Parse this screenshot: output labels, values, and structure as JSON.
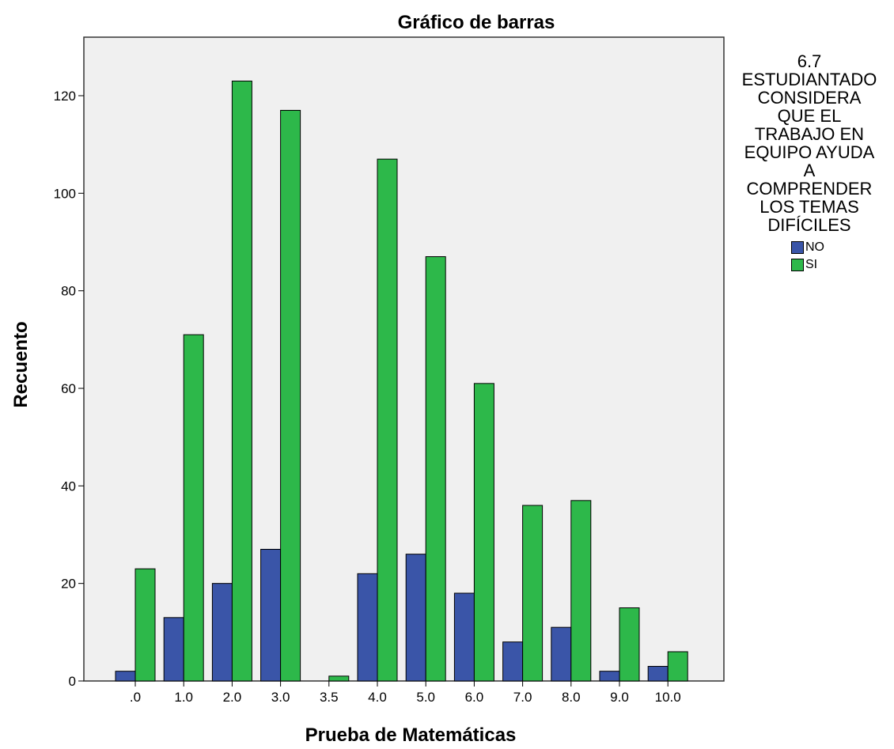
{
  "chart_data": {
    "type": "bar",
    "title": "Gráfico de barras",
    "xlabel": "Prueba de Matemáticas",
    "ylabel": "Recuento",
    "categories": [
      ".0",
      "1.0",
      "2.0",
      "3.0",
      "3.5",
      "4.0",
      "5.0",
      "6.0",
      "7.0",
      "8.0",
      "9.0",
      "10.0"
    ],
    "series": [
      {
        "name": "NO",
        "color": "#3a55a8",
        "values": [
          2,
          13,
          20,
          27,
          0,
          22,
          26,
          18,
          8,
          11,
          2,
          3
        ]
      },
      {
        "name": "SI",
        "color": "#2db84a",
        "values": [
          23,
          71,
          123,
          117,
          1,
          107,
          87,
          61,
          36,
          37,
          15,
          6
        ]
      }
    ],
    "ylim": [
      0,
      132
    ],
    "yticks": [
      0,
      20,
      40,
      60,
      80,
      100,
      120
    ],
    "ytick_labels": [
      "0",
      "20",
      "40",
      "60",
      "80",
      "100",
      "120"
    ],
    "legend": {
      "title_lines": [
        "6.7",
        "ESTUDIANTADO",
        "CONSIDERA",
        "QUE EL",
        "TRABAJO EN",
        "EQUIPO AYUDA",
        "A",
        "COMPRENDER",
        "LOS TEMAS",
        "DIFÍCILES"
      ],
      "placement": "right"
    },
    "plot_background": "#f0f0f0",
    "grid": false
  }
}
